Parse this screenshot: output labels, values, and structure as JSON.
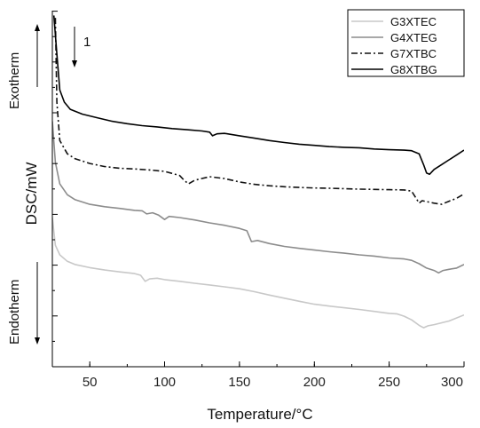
{
  "chart_data": {
    "type": "line",
    "title": "",
    "xlabel": "Temperature/°C",
    "ylabel": "DSC/mW",
    "xlim": [
      25,
      300
    ],
    "x_ticks": [
      50,
      100,
      150,
      200,
      250,
      300
    ],
    "y_ticks_shown": false,
    "grid": false,
    "legend_placement": "top-right",
    "annotations": {
      "exotherm": "Exotherm",
      "endotherm": "Endotherm",
      "scan_number": "1"
    },
    "series": [
      {
        "name": "G3XTEC",
        "color": "#c8c8c8",
        "dash": "solid",
        "points": [
          [
            25,
            0.72
          ],
          [
            27,
            0.605
          ],
          [
            30,
            0.565
          ],
          [
            35,
            0.538
          ],
          [
            40,
            0.525
          ],
          [
            50,
            0.512
          ],
          [
            60,
            0.502
          ],
          [
            70,
            0.494
          ],
          [
            80,
            0.487
          ],
          [
            84,
            0.48
          ],
          [
            87,
            0.455
          ],
          [
            90,
            0.465
          ],
          [
            95,
            0.468
          ],
          [
            100,
            0.462
          ],
          [
            110,
            0.455
          ],
          [
            120,
            0.447
          ],
          [
            130,
            0.44
          ],
          [
            140,
            0.432
          ],
          [
            150,
            0.424
          ],
          [
            160,
            0.412
          ],
          [
            170,
            0.398
          ],
          [
            180,
            0.385
          ],
          [
            190,
            0.372
          ],
          [
            200,
            0.36
          ],
          [
            210,
            0.352
          ],
          [
            220,
            0.345
          ],
          [
            230,
            0.338
          ],
          [
            240,
            0.33
          ],
          [
            250,
            0.322
          ],
          [
            255,
            0.32
          ],
          [
            260,
            0.31
          ],
          [
            265,
            0.295
          ],
          [
            270,
            0.272
          ],
          [
            273,
            0.262
          ],
          [
            276,
            0.27
          ],
          [
            280,
            0.275
          ],
          [
            290,
            0.29
          ],
          [
            300,
            0.315
          ]
        ]
      },
      {
        "name": "G4XTEG",
        "color": "#8c8c8c",
        "dash": "solid",
        "points": [
          [
            25,
            1.12
          ],
          [
            27,
            0.95
          ],
          [
            30,
            0.86
          ],
          [
            35,
            0.815
          ],
          [
            40,
            0.795
          ],
          [
            50,
            0.775
          ],
          [
            60,
            0.765
          ],
          [
            70,
            0.758
          ],
          [
            80,
            0.75
          ],
          [
            85,
            0.748
          ],
          [
            88,
            0.735
          ],
          [
            92,
            0.74
          ],
          [
            96,
            0.73
          ],
          [
            100,
            0.712
          ],
          [
            103,
            0.725
          ],
          [
            110,
            0.72
          ],
          [
            120,
            0.71
          ],
          [
            130,
            0.698
          ],
          [
            140,
            0.688
          ],
          [
            150,
            0.675
          ],
          [
            155,
            0.665
          ],
          [
            158,
            0.62
          ],
          [
            162,
            0.625
          ],
          [
            170,
            0.612
          ],
          [
            180,
            0.6
          ],
          [
            190,
            0.592
          ],
          [
            200,
            0.585
          ],
          [
            210,
            0.578
          ],
          [
            220,
            0.572
          ],
          [
            230,
            0.565
          ],
          [
            240,
            0.56
          ],
          [
            250,
            0.552
          ],
          [
            260,
            0.548
          ],
          [
            265,
            0.542
          ],
          [
            270,
            0.528
          ],
          [
            275,
            0.51
          ],
          [
            280,
            0.5
          ],
          [
            283,
            0.49
          ],
          [
            286,
            0.5
          ],
          [
            290,
            0.505
          ],
          [
            295,
            0.51
          ],
          [
            300,
            0.525
          ]
        ]
      },
      {
        "name": "G7XTBC",
        "color": "#111111",
        "dash": "dashdot",
        "points": [
          [
            27,
            1.55
          ],
          [
            28,
            1.2
          ],
          [
            30,
            1.04
          ],
          [
            35,
            0.985
          ],
          [
            40,
            0.965
          ],
          [
            50,
            0.945
          ],
          [
            60,
            0.932
          ],
          [
            70,
            0.925
          ],
          [
            80,
            0.922
          ],
          [
            90,
            0.918
          ],
          [
            100,
            0.912
          ],
          [
            110,
            0.895
          ],
          [
            113,
            0.875
          ],
          [
            116,
            0.86
          ],
          [
            120,
            0.875
          ],
          [
            130,
            0.89
          ],
          [
            140,
            0.882
          ],
          [
            150,
            0.868
          ],
          [
            160,
            0.858
          ],
          [
            170,
            0.852
          ],
          [
            180,
            0.848
          ],
          [
            190,
            0.845
          ],
          [
            200,
            0.843
          ],
          [
            210,
            0.842
          ],
          [
            220,
            0.84
          ],
          [
            230,
            0.838
          ],
          [
            240,
            0.837
          ],
          [
            250,
            0.836
          ],
          [
            260,
            0.835
          ],
          [
            265,
            0.83
          ],
          [
            268,
            0.8
          ],
          [
            270,
            0.78
          ],
          [
            272,
            0.79
          ],
          [
            276,
            0.785
          ],
          [
            280,
            0.78
          ],
          [
            285,
            0.775
          ],
          [
            290,
            0.788
          ],
          [
            295,
            0.8
          ],
          [
            300,
            0.818
          ]
        ]
      },
      {
        "name": "G8XTBG",
        "color": "#000000",
        "dash": "solid",
        "points": [
          [
            26,
            1.56
          ],
          [
            28,
            1.4
          ],
          [
            30,
            1.25
          ],
          [
            33,
            1.2
          ],
          [
            37,
            1.17
          ],
          [
            45,
            1.15
          ],
          [
            55,
            1.135
          ],
          [
            65,
            1.12
          ],
          [
            75,
            1.11
          ],
          [
            85,
            1.102
          ],
          [
            95,
            1.097
          ],
          [
            105,
            1.09
          ],
          [
            115,
            1.085
          ],
          [
            125,
            1.08
          ],
          [
            130,
            1.075
          ],
          [
            132,
            1.06
          ],
          [
            135,
            1.068
          ],
          [
            140,
            1.07
          ],
          [
            150,
            1.06
          ],
          [
            160,
            1.05
          ],
          [
            170,
            1.04
          ],
          [
            180,
            1.032
          ],
          [
            190,
            1.025
          ],
          [
            200,
            1.02
          ],
          [
            210,
            1.015
          ],
          [
            220,
            1.012
          ],
          [
            230,
            1.01
          ],
          [
            240,
            1.005
          ],
          [
            250,
            1.002
          ],
          [
            260,
            1.0
          ],
          [
            265,
            0.998
          ],
          [
            270,
            0.985
          ],
          [
            273,
            0.94
          ],
          [
            275,
            0.905
          ],
          [
            277,
            0.9
          ],
          [
            280,
            0.92
          ],
          [
            285,
            0.94
          ],
          [
            290,
            0.96
          ],
          [
            295,
            0.98
          ],
          [
            300,
            1.0
          ]
        ]
      }
    ]
  }
}
